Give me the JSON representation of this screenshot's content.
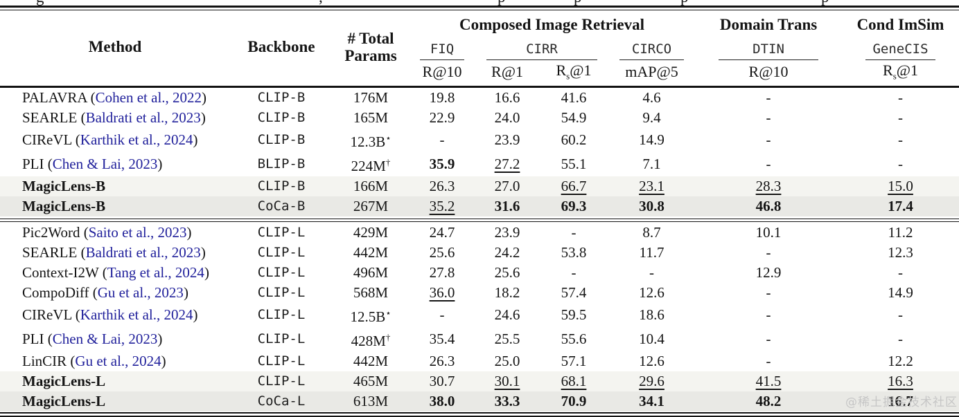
{
  "caption_fragments": [
    "g",
    ",",
    "p",
    "p",
    "p",
    "p"
  ],
  "colors": {
    "citation": "#20209b",
    "highlight_light": "#f4f4f0",
    "highlight_dark": "#e9e9e5"
  },
  "header": {
    "method": "Method",
    "backbone": "Backbone",
    "params_line1": "# Total",
    "params_line2": "Params",
    "groups": [
      {
        "title": "Composed Image Retrieval"
      },
      {
        "title": "Domain Trans"
      },
      {
        "title": "Cond ImSim"
      }
    ],
    "datasets": {
      "fiq": "FIQ",
      "cirr": "CIRR",
      "circo": "CIRCO",
      "dtin": "DTIN",
      "genecis": "GeneCIS"
    },
    "metrics": {
      "fiq_r10": "R@10",
      "cirr_r1": "R@1",
      "cirr_rs1": "R_s@1",
      "circo_map5": "mAP@5",
      "dtin_r10": "R@10",
      "genecis_rs1": "R_s@1"
    }
  },
  "table": {
    "sections": [
      {
        "rows": [
          {
            "method": "PALAVRA",
            "citation": "Cohen et al., 2022",
            "bold": false,
            "backbone": "CLIP-B",
            "params": "176M",
            "params_sup": "",
            "highlight": "",
            "values": [
              "19.8",
              "16.6",
              "41.6",
              "4.6",
              "-",
              "-"
            ]
          },
          {
            "method": "SEARLE",
            "citation": "Baldrati et al., 2023",
            "bold": false,
            "backbone": "CLIP-B",
            "params": "165M",
            "params_sup": "",
            "highlight": "",
            "values": [
              "22.9",
              "24.0",
              "54.9",
              "9.4",
              "-",
              "-"
            ]
          },
          {
            "method": "CIReVL",
            "citation": "Karthik et al., 2024",
            "bold": false,
            "backbone": "CLIP-B",
            "params": "12.3B",
            "params_sup": "⋆",
            "highlight": "",
            "values": [
              "-",
              "23.9",
              "60.2",
              "14.9",
              "-",
              "-"
            ]
          },
          {
            "method": "PLI",
            "citation": "Chen & Lai, 2023",
            "bold": false,
            "backbone": "BLIP-B",
            "params": "224M",
            "params_sup": "†",
            "highlight": "",
            "values": [
              "b:35.9",
              "u:27.2",
              "55.1",
              "7.1",
              "-",
              "-"
            ]
          },
          {
            "method": "MagicLens-B",
            "citation": "",
            "bold": true,
            "backbone": "CLIP-B",
            "params": "166M",
            "params_sup": "",
            "highlight": "a",
            "values": [
              "26.3",
              "27.0",
              "u:66.7",
              "u:23.1",
              "u:28.3",
              "u:15.0"
            ]
          },
          {
            "method": "MagicLens-B",
            "citation": "",
            "bold": true,
            "backbone": "CoCa-B",
            "params": "267M",
            "params_sup": "",
            "highlight": "b",
            "values": [
              "u:35.2",
              "b:31.6",
              "b:69.3",
              "b:30.8",
              "b:46.8",
              "b:17.4"
            ]
          }
        ]
      },
      {
        "rows": [
          {
            "method": "Pic2Word",
            "citation": "Saito et al., 2023",
            "bold": false,
            "backbone": "CLIP-L",
            "params": "429M",
            "params_sup": "",
            "highlight": "",
            "values": [
              "24.7",
              "23.9",
              "-",
              "8.7",
              "10.1",
              "11.2"
            ]
          },
          {
            "method": "SEARLE",
            "citation": "Baldrati et al., 2023",
            "bold": false,
            "backbone": "CLIP-L",
            "params": "442M",
            "params_sup": "",
            "highlight": "",
            "values": [
              "25.6",
              "24.2",
              "53.8",
              "11.7",
              "-",
              "12.3"
            ]
          },
          {
            "method": "Context-I2W",
            "citation": "Tang et al., 2024",
            "bold": false,
            "backbone": "CLIP-L",
            "params": "496M",
            "params_sup": "",
            "highlight": "",
            "values": [
              "27.8",
              "25.6",
              "-",
              "-",
              "12.9",
              "-"
            ]
          },
          {
            "method": "CompoDiff",
            "citation": "Gu et al., 2023",
            "bold": false,
            "backbone": "CLIP-L",
            "params": "568M",
            "params_sup": "",
            "highlight": "",
            "values": [
              "u:36.0",
              "18.2",
              "57.4",
              "12.6",
              "-",
              "14.9"
            ]
          },
          {
            "method": "CIReVL",
            "citation": "Karthik et al., 2024",
            "bold": false,
            "backbone": "CLIP-L",
            "params": "12.5B",
            "params_sup": "⋆",
            "highlight": "",
            "values": [
              "-",
              "24.6",
              "59.5",
              "18.6",
              "-",
              "-"
            ]
          },
          {
            "method": "PLI",
            "citation": "Chen & Lai, 2023",
            "bold": false,
            "backbone": "CLIP-L",
            "params": "428M",
            "params_sup": "†",
            "highlight": "",
            "values": [
              "35.4",
              "25.5",
              "55.6",
              "10.4",
              "-",
              "-"
            ]
          },
          {
            "method": "LinCIR",
            "citation": "Gu et al., 2024",
            "bold": false,
            "backbone": "CLIP-L",
            "params": "442M",
            "params_sup": "",
            "highlight": "",
            "values": [
              "26.3",
              "25.0",
              "57.1",
              "12.6",
              "-",
              "12.2"
            ]
          },
          {
            "method": "MagicLens-L",
            "citation": "",
            "bold": true,
            "backbone": "CLIP-L",
            "params": "465M",
            "params_sup": "",
            "highlight": "a",
            "values": [
              "30.7",
              "u:30.1",
              "u:68.1",
              "u:29.6",
              "u:41.5",
              "u:16.3"
            ]
          },
          {
            "method": "MagicLens-L",
            "citation": "",
            "bold": true,
            "backbone": "CoCa-L",
            "params": "613M",
            "params_sup": "",
            "highlight": "b",
            "values": [
              "b:38.0",
              "b:33.3",
              "b:70.9",
              "b:34.1",
              "b:48.2",
              "b:16.7"
            ]
          }
        ]
      }
    ]
  },
  "watermark": "@稀土掘金技术社区"
}
